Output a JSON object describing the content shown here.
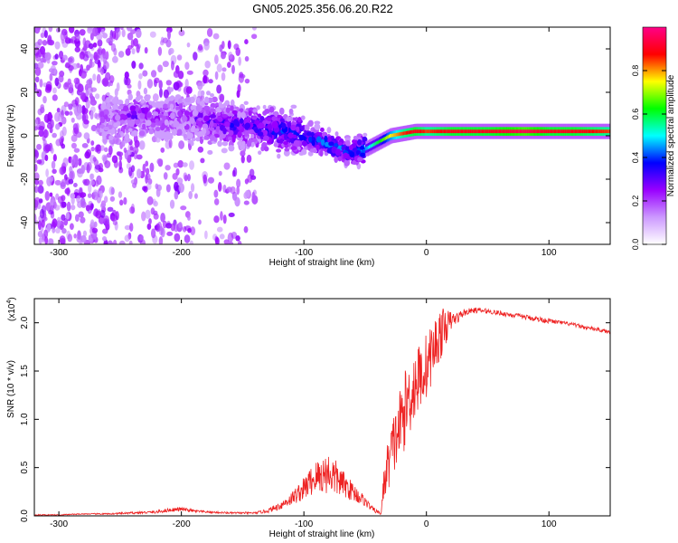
{
  "title": "GN05.2025.356.06.20.R22",
  "chart_data": [
    {
      "type": "heatmap",
      "xlabel": "Height of straight line (km)",
      "ylabel": "Frequency (Hz)",
      "xlim": [
        -320,
        150
      ],
      "ylim": [
        -50,
        50
      ],
      "xticks": [
        -300,
        -200,
        -100,
        0,
        100
      ],
      "yticks": [
        -40,
        -20,
        0,
        20,
        40
      ],
      "colorbar": {
        "label": "Normalized spectral amplitude",
        "range": [
          0,
          1
        ],
        "ticks": [
          0.0,
          0.2,
          0.4,
          0.6,
          0.8
        ],
        "colors": [
          "#ffffff",
          "#cc99ff",
          "#9900ff",
          "#0000ff",
          "#00ffff",
          "#00ff00",
          "#ffff00",
          "#ff0000",
          "#ff0088"
        ]
      },
      "ridge": {
        "x": [
          -260,
          -240,
          -220,
          -200,
          -180,
          -160,
          -140,
          -120,
          -100,
          -80,
          -60,
          -50,
          -40,
          -30,
          -20,
          -10,
          0,
          20,
          50,
          80,
          100,
          120,
          150
        ],
        "y": [
          8,
          9,
          9,
          8,
          7,
          5,
          4,
          2,
          0,
          -4,
          -8,
          -6,
          -3,
          0,
          1,
          2,
          2,
          2,
          2,
          2,
          2,
          2,
          2
        ],
        "amplitude": [
          0.15,
          0.25,
          0.2,
          0.2,
          0.25,
          0.3,
          0.3,
          0.35,
          0.35,
          0.4,
          0.35,
          0.45,
          0.6,
          0.75,
          0.85,
          0.9,
          0.85,
          0.9,
          0.9,
          0.95,
          0.9,
          0.9,
          0.85
        ]
      },
      "grid": false
    },
    {
      "type": "line",
      "xlabel": "Height of straight line (km)",
      "ylabel": "SNR (10 * v/v)",
      "yscale_note": "(x10^4)",
      "xlim": [
        -320,
        150
      ],
      "ylim": [
        0,
        2.25
      ],
      "xticks": [
        -300,
        -200,
        -100,
        0,
        100
      ],
      "yticks": [
        0.0,
        0.5,
        1.0,
        1.5,
        2.0
      ],
      "ytick_labels": [
        "0.0",
        "0.5",
        "1.0",
        "1.5",
        "2.0"
      ],
      "series": [
        {
          "color": "#ee2222",
          "x": [
            -320,
            -300,
            -280,
            -260,
            -240,
            -220,
            -210,
            -200,
            -190,
            -180,
            -160,
            -140,
            -130,
            -120,
            -110,
            -100,
            -95,
            -90,
            -85,
            -80,
            -75,
            -70,
            -65,
            -60,
            -55,
            -50,
            -45,
            -40,
            -37,
            -35,
            -32,
            -30,
            -25,
            -20,
            -15,
            -10,
            -5,
            0,
            5,
            10,
            15,
            20,
            25,
            30,
            35,
            40,
            50,
            60,
            70,
            80,
            90,
            100,
            110,
            120,
            130,
            140,
            150
          ],
          "y": [
            0.01,
            0.01,
            0.02,
            0.02,
            0.03,
            0.04,
            0.06,
            0.07,
            0.05,
            0.04,
            0.03,
            0.03,
            0.05,
            0.1,
            0.18,
            0.28,
            0.35,
            0.4,
            0.42,
            0.45,
            0.4,
            0.35,
            0.3,
            0.25,
            0.2,
            0.15,
            0.08,
            0.04,
            0.02,
            0.3,
            0.5,
            0.6,
            0.8,
            1.0,
            1.2,
            1.35,
            1.45,
            1.55,
            1.7,
            1.85,
            1.95,
            2.02,
            2.05,
            2.1,
            2.12,
            2.13,
            2.12,
            2.1,
            2.08,
            2.06,
            2.04,
            2.02,
            2.0,
            1.98,
            1.95,
            1.93,
            1.9
          ],
          "noise": [
            0.005,
            0.005,
            0.005,
            0.008,
            0.01,
            0.015,
            0.02,
            0.02,
            0.015,
            0.01,
            0.01,
            0.01,
            0.02,
            0.04,
            0.07,
            0.12,
            0.15,
            0.18,
            0.2,
            0.22,
            0.2,
            0.15,
            0.12,
            0.1,
            0.08,
            0.05,
            0.03,
            0.02,
            0.01,
            0.15,
            0.25,
            0.3,
            0.35,
            0.4,
            0.4,
            0.4,
            0.35,
            0.35,
            0.3,
            0.3,
            0.2,
            0.1,
            0.06,
            0.04,
            0.03,
            0.03,
            0.025,
            0.025,
            0.025,
            0.025,
            0.03,
            0.025,
            0.02,
            0.02,
            0.02,
            0.02,
            0.02
          ]
        }
      ]
    }
  ]
}
